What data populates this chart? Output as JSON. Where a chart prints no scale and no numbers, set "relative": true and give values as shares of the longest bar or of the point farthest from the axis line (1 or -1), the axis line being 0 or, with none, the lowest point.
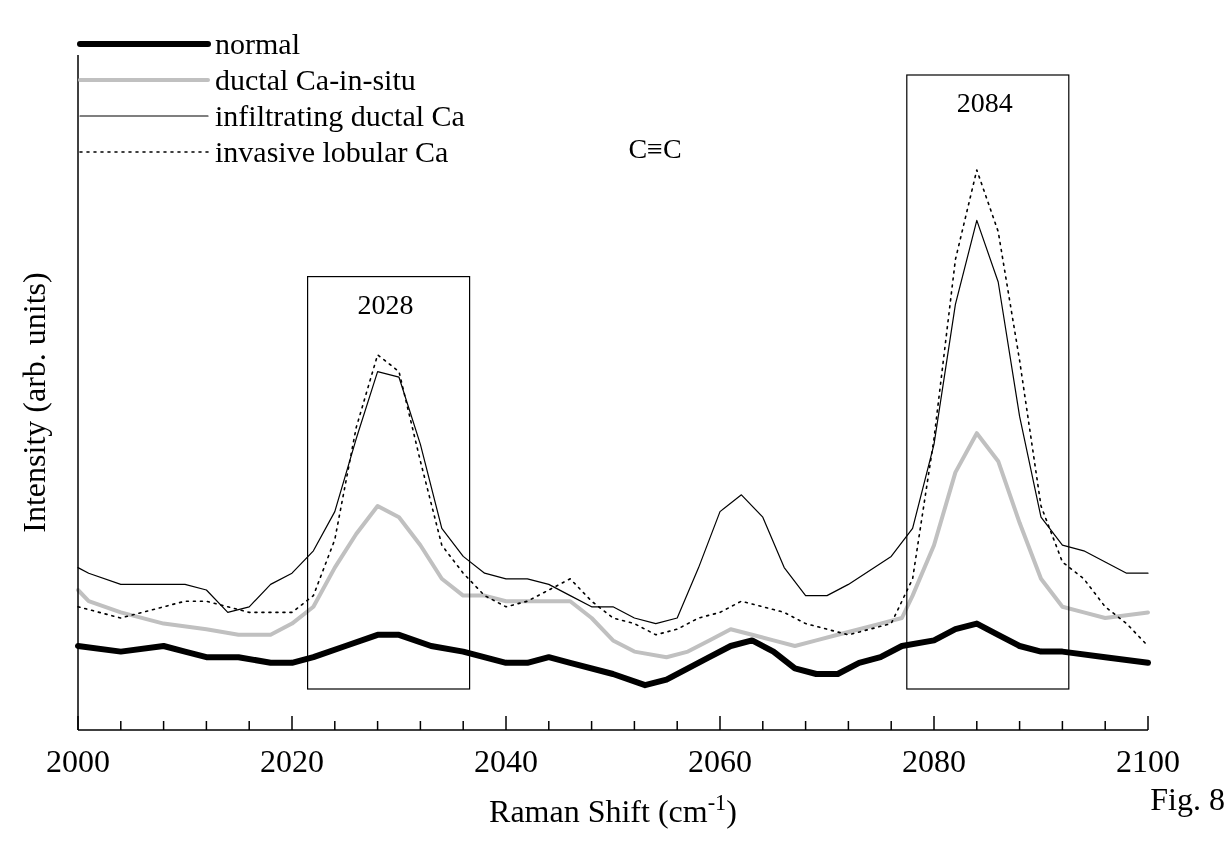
{
  "chart_data": {
    "type": "line",
    "relative": true,
    "xlabel": "Raman Shift (cm$^{-1}$)",
    "ylabel": "Intensity (arb. units)",
    "xlim": [
      2000,
      2100
    ],
    "xticks": [
      2000,
      {
        "value": 2004,
        "label": null
      },
      {
        "value": 2008,
        "label": null
      },
      {
        "value": 2012,
        "label": null
      },
      {
        "value": 2016,
        "label": null
      },
      2020,
      {
        "value": 2024,
        "label": null
      },
      {
        "value": 2028,
        "label": null
      },
      {
        "value": 2032,
        "label": null
      },
      {
        "value": 2036,
        "label": null
      },
      2040,
      {
        "value": 2044,
        "label": null
      },
      {
        "value": 2048,
        "label": null
      },
      {
        "value": 2052,
        "label": null
      },
      {
        "value": 2056,
        "label": null
      },
      2060,
      {
        "value": 2064,
        "label": null
      },
      {
        "value": 2068,
        "label": null
      },
      {
        "value": 2072,
        "label": null
      },
      {
        "value": 2076,
        "label": null
      },
      2080,
      {
        "value": 2084,
        "label": null
      },
      {
        "value": 2088,
        "label": null
      },
      {
        "value": 2092,
        "label": null
      },
      {
        "value": 2096,
        "label": null
      },
      2100
    ],
    "legend": "top left",
    "annotations": [
      "C≡C",
      "Fig. 8",
      {
        "text": "2028",
        "x": 2028,
        "y": 0.64
      },
      {
        "text": "2084",
        "x": 2084,
        "y": 1
      }
    ],
    "series": [
      {
        "name": "normal",
        "color": "#000000",
        "line_style": "solid",
        "x": [
          2000,
          2004,
          2008,
          2010,
          2012,
          2015,
          2018,
          2020,
          2022,
          2025,
          2028,
          2030,
          2033,
          2036,
          2040,
          2042,
          2044,
          2046,
          2050,
          2053,
          2055,
          2057,
          2059,
          2061,
          2063,
          2065,
          2067,
          2069,
          2071,
          2073,
          2075,
          2077,
          2080,
          2082,
          2084,
          2086,
          2088,
          2090,
          2092,
          2096,
          2100
        ],
        "values": [
          0.15,
          0.14,
          0.15,
          0.14,
          0.13,
          0.13,
          0.12,
          0.12,
          0.13,
          0.15,
          0.17,
          0.17,
          0.15,
          0.14,
          0.12,
          0.12,
          0.13,
          0.12,
          0.1,
          0.08,
          0.09,
          0.11,
          0.13,
          0.15,
          0.16,
          0.14,
          0.11,
          0.1,
          0.1,
          0.12,
          0.13,
          0.15,
          0.16,
          0.18,
          0.19,
          0.17,
          0.15,
          0.14,
          0.14,
          0.13,
          0.12
        ]
      },
      {
        "name": "ductal Ca-in-situ",
        "color": "#c0c0c0",
        "line_style": "solid",
        "x": [
          2000,
          2001,
          2004,
          2008,
          2012,
          2015,
          2018,
          2020,
          2022,
          2024,
          2026,
          2028,
          2030,
          2032,
          2034,
          2036,
          2038,
          2040,
          2042,
          2044,
          2046,
          2048,
          2050,
          2052,
          2055,
          2057,
          2059,
          2061,
          2063,
          2065,
          2067,
          2069,
          2071,
          2073,
          2075,
          2077,
          2078,
          2080,
          2082,
          2084,
          2086,
          2088,
          2090,
          2092,
          2094,
          2096,
          2100
        ],
        "values": [
          0.25,
          0.23,
          0.21,
          0.19,
          0.18,
          0.17,
          0.17,
          0.19,
          0.22,
          0.29,
          0.35,
          0.4,
          0.38,
          0.33,
          0.27,
          0.24,
          0.24,
          0.23,
          0.23,
          0.23,
          0.23,
          0.2,
          0.16,
          0.14,
          0.13,
          0.14,
          0.16,
          0.18,
          0.17,
          0.16,
          0.15,
          0.16,
          0.17,
          0.18,
          0.19,
          0.2,
          0.24,
          0.33,
          0.46,
          0.53,
          0.48,
          0.37,
          0.27,
          0.22,
          0.21,
          0.2,
          0.21
        ]
      },
      {
        "name": "infiltrating ductal Ca",
        "color": "#000000",
        "line_style": "solid",
        "x": [
          2000,
          2001,
          2004,
          2008,
          2010,
          2012,
          2014,
          2016,
          2018,
          2020,
          2022,
          2024,
          2026,
          2028,
          2030,
          2032,
          2034,
          2036,
          2038,
          2040,
          2042,
          2044,
          2046,
          2048,
          2050,
          2052,
          2054,
          2056,
          2058,
          2060,
          2062,
          2064,
          2066,
          2068,
          2070,
          2072,
          2076,
          2078,
          2080,
          2082,
          2084,
          2086,
          2088,
          2090,
          2092,
          2094,
          2096,
          2098,
          2100
        ],
        "values": [
          0.29,
          0.28,
          0.26,
          0.26,
          0.26,
          0.25,
          0.21,
          0.22,
          0.26,
          0.28,
          0.32,
          0.39,
          0.52,
          0.64,
          0.63,
          0.51,
          0.36,
          0.31,
          0.28,
          0.27,
          0.27,
          0.26,
          0.24,
          0.22,
          0.22,
          0.2,
          0.19,
          0.2,
          0.29,
          0.39,
          0.42,
          0.38,
          0.29,
          0.24,
          0.24,
          0.26,
          0.31,
          0.36,
          0.51,
          0.76,
          0.91,
          0.8,
          0.56,
          0.38,
          0.33,
          0.32,
          0.3,
          0.28,
          0.28
        ]
      },
      {
        "name": "invasive lobular Ca",
        "color": "#000000",
        "line_style": "dotted",
        "x": [
          2000,
          2004,
          2008,
          2010,
          2012,
          2014,
          2016,
          2018,
          2020,
          2022,
          2024,
          2026,
          2028,
          2030,
          2032,
          2034,
          2036,
          2038,
          2040,
          2042,
          2044,
          2046,
          2048,
          2050,
          2052,
          2054,
          2056,
          2058,
          2060,
          2062,
          2064,
          2066,
          2068,
          2070,
          2072,
          2074,
          2076,
          2078,
          2080,
          2082,
          2084,
          2086,
          2088,
          2090,
          2092,
          2094,
          2096,
          2098,
          2100
        ],
        "values": [
          0.22,
          0.2,
          0.22,
          0.23,
          0.23,
          0.22,
          0.21,
          0.21,
          0.21,
          0.24,
          0.34,
          0.54,
          0.67,
          0.64,
          0.48,
          0.33,
          0.28,
          0.24,
          0.22,
          0.23,
          0.25,
          0.27,
          0.23,
          0.2,
          0.19,
          0.17,
          0.18,
          0.2,
          0.21,
          0.23,
          0.22,
          0.21,
          0.19,
          0.18,
          0.17,
          0.18,
          0.19,
          0.27,
          0.52,
          0.84,
          1,
          0.89,
          0.66,
          0.4,
          0.3,
          0.27,
          0.22,
          0.19,
          0.15
        ]
      }
    ]
  }
}
